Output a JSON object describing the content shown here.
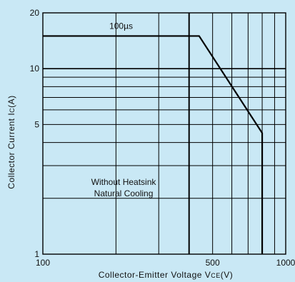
{
  "chart_data": {
    "type": "line",
    "title": "",
    "xlabel": "Collector-Emitter Voltage VCE(V)",
    "xlabel_parts": {
      "main": "Collector-Emitter Voltage V",
      "sub": "CE",
      "unit": "(V)"
    },
    "ylabel": "Collector Current IC(A)",
    "ylabel_parts": {
      "main": "Collector Current I",
      "sub": "C",
      "unit": "(A)"
    },
    "x_scale": "log",
    "y_scale": "log",
    "xlim": [
      100,
      1000
    ],
    "ylim": [
      1,
      20
    ],
    "x_ticks": [
      {
        "value": 100,
        "label": "100"
      },
      {
        "value": 500,
        "label": "500"
      },
      {
        "value": 1000,
        "label": "1000"
      }
    ],
    "y_ticks": [
      {
        "value": 1,
        "label": "1"
      },
      {
        "value": 5,
        "label": "5"
      },
      {
        "value": 10,
        "label": "10"
      },
      {
        "value": 20,
        "label": "20"
      }
    ],
    "grid": true,
    "x_grid": [
      200,
      300,
      400,
      500,
      600,
      700,
      800,
      900
    ],
    "y_grid": [
      2,
      3,
      4,
      5,
      6,
      7,
      8,
      9,
      10
    ],
    "series": [
      {
        "x": [
          100,
          440,
          800,
          800
        ],
        "y": [
          15,
          15,
          4.5,
          1
        ]
      }
    ],
    "vertical_markers": [
      400
    ],
    "annotations": [
      {
        "text": "100µs",
        "x": 210,
        "y": 17
      },
      {
        "text": "Without Heatsink",
        "x": 215,
        "y": 2.45
      },
      {
        "text": "Natural Cooling",
        "x": 215,
        "y": 2.12
      }
    ]
  }
}
